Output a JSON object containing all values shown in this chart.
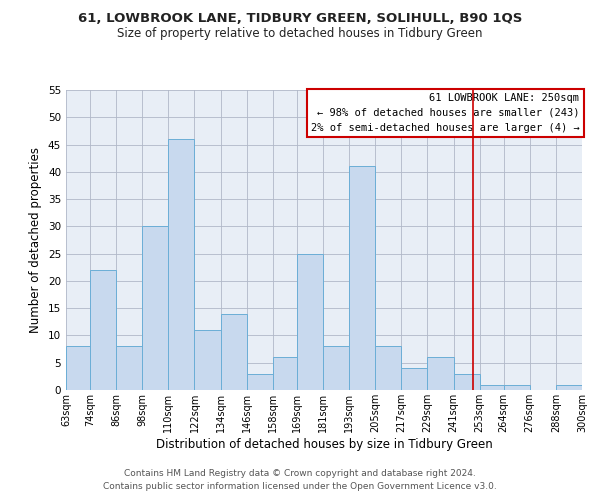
{
  "title": "61, LOWBROOK LANE, TIDBURY GREEN, SOLIHULL, B90 1QS",
  "subtitle": "Size of property relative to detached houses in Tidbury Green",
  "xlabel": "Distribution of detached houses by size in Tidbury Green",
  "ylabel": "Number of detached properties",
  "bin_edges": [
    63,
    74,
    86,
    98,
    110,
    122,
    134,
    146,
    158,
    169,
    181,
    193,
    205,
    217,
    229,
    241,
    253,
    264,
    276,
    288,
    300
  ],
  "counts": [
    8,
    22,
    8,
    30,
    46,
    11,
    14,
    3,
    6,
    25,
    8,
    41,
    8,
    4,
    6,
    3,
    1,
    1,
    0,
    1
  ],
  "bar_color": "#c8d9ee",
  "bar_edge_color": "#6baed6",
  "reference_line_x": 250,
  "reference_line_color": "#cc0000",
  "plot_bg_color": "#e8eef6",
  "ylim": [
    0,
    55
  ],
  "yticks": [
    0,
    5,
    10,
    15,
    20,
    25,
    30,
    35,
    40,
    45,
    50,
    55
  ],
  "xtick_labels": [
    "63sqm",
    "74sqm",
    "86sqm",
    "98sqm",
    "110sqm",
    "122sqm",
    "134sqm",
    "146sqm",
    "158sqm",
    "169sqm",
    "181sqm",
    "193sqm",
    "205sqm",
    "217sqm",
    "229sqm",
    "241sqm",
    "253sqm",
    "264sqm",
    "276sqm",
    "288sqm",
    "300sqm"
  ],
  "legend_title": "61 LOWBROOK LANE: 250sqm",
  "legend_line1": "← 98% of detached houses are smaller (243)",
  "legend_line2": "2% of semi-detached houses are larger (4) →",
  "legend_box_color": "white",
  "legend_box_edge_color": "#cc0000",
  "footer_line1": "Contains HM Land Registry data © Crown copyright and database right 2024.",
  "footer_line2": "Contains public sector information licensed under the Open Government Licence v3.0.",
  "background_color": "white",
  "grid_color": "#b0b8c8"
}
